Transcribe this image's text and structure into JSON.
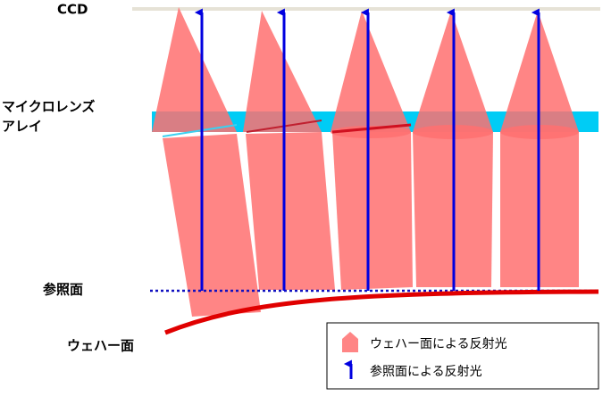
{
  "labels": {
    "ccd": "CCD",
    "microlens_line1": "マイクロレンズ",
    "microlens_line2": "アレイ",
    "reference": "参照面",
    "wafer": "ウェハー面"
  },
  "legend": {
    "items": [
      "ウェハー面による反射光",
      "参照面による反射光"
    ]
  }
}
